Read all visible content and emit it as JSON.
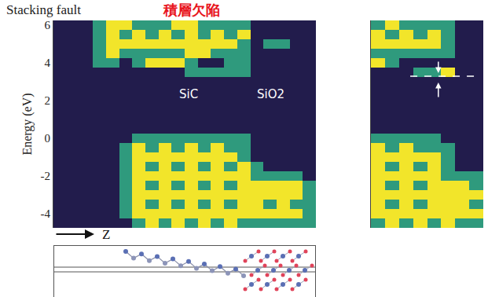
{
  "chart_data": [
    {
      "type": "heatmap",
      "title": "Stacking fault",
      "subtitle": "積層欠陥",
      "x_label": "Z",
      "y_label": "Energy (eV)",
      "ylim": [
        -4.75,
        6.25
      ],
      "yticks": [
        -4,
        -2,
        0,
        2,
        4,
        6
      ],
      "tick_labels": "y",
      "annotations": [
        "SiC",
        "SiO2"
      ],
      "y": [
        -4.5,
        -4,
        -3.5,
        -3,
        -2.5,
        -2,
        -1.5,
        -1,
        -0.5,
        0,
        0.5,
        1,
        1.5,
        2,
        2.5,
        3,
        3.5,
        4,
        4.5,
        5,
        5.5,
        6
      ],
      "z": [
        [
          0,
          0,
          0,
          0,
          0,
          0,
          1,
          2,
          1,
          2,
          1,
          2,
          1,
          2,
          1,
          1,
          1,
          1,
          1,
          1
        ],
        [
          0,
          0,
          0,
          0,
          0,
          1,
          2,
          2,
          2,
          2,
          2,
          2,
          2,
          2,
          2,
          2,
          2,
          2,
          2,
          1
        ],
        [
          0,
          0,
          0,
          0,
          0,
          1,
          2,
          1,
          2,
          1,
          2,
          1,
          2,
          1,
          2,
          2,
          1,
          2,
          1,
          1
        ],
        [
          0,
          0,
          0,
          0,
          0,
          1,
          2,
          2,
          2,
          2,
          2,
          2,
          2,
          2,
          2,
          2,
          2,
          2,
          2,
          1
        ],
        [
          0,
          0,
          0,
          0,
          0,
          1,
          2,
          1,
          2,
          1,
          2,
          1,
          2,
          1,
          2,
          2,
          2,
          2,
          2,
          1
        ],
        [
          0,
          0,
          0,
          0,
          0,
          1,
          2,
          2,
          2,
          2,
          2,
          2,
          2,
          2,
          2,
          1,
          1,
          1,
          1,
          0
        ],
        [
          0,
          0,
          0,
          0,
          0,
          1,
          2,
          1,
          2,
          1,
          2,
          1,
          2,
          1,
          2,
          1,
          0,
          0,
          0,
          0
        ],
        [
          0,
          0,
          0,
          0,
          0,
          1,
          2,
          2,
          2,
          2,
          2,
          2,
          2,
          2,
          1,
          0,
          0,
          0,
          0,
          0
        ],
        [
          0,
          0,
          0,
          0,
          0,
          1,
          2,
          1,
          2,
          1,
          2,
          1,
          2,
          1,
          1,
          0,
          0,
          0,
          0,
          0
        ],
        [
          0,
          0,
          0,
          0,
          0,
          0,
          1,
          1,
          1,
          1,
          1,
          1,
          1,
          1,
          1,
          0,
          0,
          0,
          0,
          0
        ],
        [
          0,
          0,
          0,
          0,
          0,
          0,
          0,
          0,
          0,
          0,
          0,
          0,
          0,
          0,
          0,
          0,
          0,
          0,
          0,
          0
        ],
        [
          0,
          0,
          0,
          0,
          0,
          0,
          0,
          0,
          0,
          0,
          0,
          0,
          0,
          0,
          0,
          0,
          0,
          0,
          0,
          0
        ],
        [
          0,
          0,
          0,
          0,
          0,
          0,
          0,
          0,
          0,
          0,
          0,
          0,
          0,
          0,
          0,
          0,
          0,
          0,
          0,
          0
        ],
        [
          0,
          0,
          0,
          0,
          0,
          0,
          0,
          0,
          0,
          0,
          0,
          0,
          0,
          0,
          0,
          0,
          0,
          0,
          0,
          0
        ],
        [
          0,
          0,
          0,
          0,
          0,
          0,
          0,
          0,
          0,
          0,
          0,
          0,
          0,
          0,
          0,
          0,
          0,
          0,
          0,
          0
        ],
        [
          0,
          0,
          0,
          0,
          0,
          0,
          0,
          0,
          0,
          0,
          0,
          0,
          0,
          0,
          0,
          0,
          0,
          0,
          0,
          0
        ],
        [
          0,
          0,
          0,
          0,
          0,
          0,
          0,
          0,
          0,
          0,
          1,
          1,
          1,
          1,
          1,
          0,
          0,
          0,
          0,
          0
        ],
        [
          0,
          0,
          0,
          1,
          1,
          0,
          1,
          2,
          2,
          2,
          1,
          0,
          0,
          1,
          1,
          0,
          0,
          0,
          0,
          0
        ],
        [
          0,
          0,
          0,
          1,
          2,
          1,
          1,
          1,
          1,
          1,
          2,
          2,
          1,
          1,
          1,
          0,
          0,
          0,
          0,
          0
        ],
        [
          0,
          0,
          0,
          1,
          2,
          2,
          2,
          2,
          2,
          2,
          2,
          2,
          2,
          2,
          1,
          0,
          1,
          1,
          0,
          0
        ],
        [
          0,
          0,
          0,
          1,
          2,
          1,
          2,
          1,
          2,
          1,
          2,
          1,
          2,
          1,
          2,
          0,
          0,
          0,
          0,
          0
        ],
        [
          0,
          0,
          0,
          1,
          2,
          2,
          1,
          1,
          1,
          2,
          2,
          1,
          1,
          1,
          1,
          0,
          0,
          0,
          0,
          0
        ]
      ]
    },
    {
      "type": "heatmap",
      "ylim": [
        -4.75,
        6.25
      ],
      "tick_labels": false,
      "y": [
        -4.5,
        -4,
        -3.5,
        -3,
        -2.5,
        -2,
        -1.5,
        -1,
        -0.5,
        0,
        0.5,
        1,
        1.5,
        2,
        2.5,
        3,
        3.5,
        4,
        4.5,
        5,
        5.5,
        6
      ],
      "z": [
        [
          1,
          2,
          1,
          2,
          1,
          2,
          1,
          1
        ],
        [
          2,
          2,
          2,
          2,
          2,
          2,
          2,
          2
        ],
        [
          2,
          1,
          2,
          1,
          2,
          2,
          2,
          1
        ],
        [
          2,
          2,
          2,
          2,
          2,
          2,
          2,
          2
        ],
        [
          2,
          1,
          2,
          1,
          2,
          2,
          2,
          1
        ],
        [
          2,
          2,
          2,
          2,
          2,
          1,
          1,
          1
        ],
        [
          2,
          1,
          2,
          1,
          2,
          1,
          0,
          0
        ],
        [
          2,
          2,
          2,
          2,
          2,
          1,
          0,
          0
        ],
        [
          2,
          1,
          2,
          1,
          1,
          1,
          0,
          0
        ],
        [
          1,
          1,
          1,
          1,
          1,
          0,
          0,
          0
        ],
        [
          0,
          0,
          0,
          0,
          0,
          0,
          0,
          0
        ],
        [
          0,
          0,
          0,
          0,
          0,
          0,
          0,
          0
        ],
        [
          0,
          0,
          0,
          0,
          0,
          0,
          0,
          0
        ],
        [
          0,
          0,
          0,
          0,
          0,
          0,
          0,
          0
        ],
        [
          0,
          0,
          0,
          0,
          0,
          0,
          0,
          0
        ],
        [
          0,
          0,
          0,
          0,
          0,
          0,
          0,
          0
        ],
        [
          0,
          0,
          0,
          1,
          1,
          2,
          0,
          0
        ],
        [
          2,
          1,
          0,
          0,
          0,
          0,
          0,
          0
        ],
        [
          1,
          1,
          1,
          1,
          1,
          1,
          0,
          0
        ],
        [
          2,
          2,
          2,
          2,
          2,
          1,
          0,
          0
        ],
        [
          2,
          1,
          2,
          1,
          2,
          1,
          0,
          0
        ],
        [
          1,
          2,
          1,
          1,
          1,
          1,
          0,
          0
        ]
      ]
    }
  ]
}
